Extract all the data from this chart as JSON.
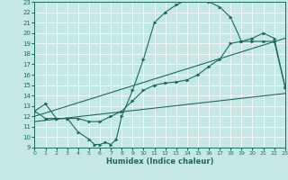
{
  "xlabel": "Humidex (Indice chaleur)",
  "xlim": [
    0,
    23
  ],
  "ylim": [
    9,
    23
  ],
  "xticks": [
    0,
    1,
    2,
    3,
    4,
    5,
    6,
    7,
    8,
    9,
    10,
    11,
    12,
    13,
    14,
    15,
    16,
    17,
    18,
    19,
    20,
    21,
    22,
    23
  ],
  "yticks": [
    9,
    10,
    11,
    12,
    13,
    14,
    15,
    16,
    17,
    18,
    19,
    20,
    21,
    22,
    23
  ],
  "bg_color": "#c5e8e5",
  "line_color": "#1a6b5a",
  "grid_color": "#b0d8d4",
  "line1_x": [
    0,
    1,
    2,
    3,
    4,
    5,
    5.5,
    6,
    6.5,
    7,
    7.5,
    8,
    9,
    10,
    11,
    12,
    13,
    14,
    15,
    16,
    17,
    18,
    19,
    20,
    21,
    22,
    23
  ],
  "line1_y": [
    12.5,
    13.2,
    11.8,
    11.8,
    10.5,
    9.8,
    9.3,
    9.3,
    9.5,
    9.3,
    9.8,
    12.0,
    14.5,
    17.5,
    21.0,
    22.0,
    22.7,
    23.2,
    23.2,
    23.0,
    22.5,
    21.5,
    19.2,
    19.5,
    20.0,
    19.5,
    14.8
  ],
  "line2_x": [
    0,
    1,
    2,
    3,
    4,
    5,
    6,
    7,
    8,
    9,
    10,
    11,
    12,
    13,
    14,
    15,
    16,
    17,
    18,
    19,
    20,
    21,
    22,
    23
  ],
  "line2_y": [
    12.5,
    11.8,
    11.8,
    11.8,
    11.8,
    11.5,
    11.5,
    12.0,
    12.5,
    13.5,
    14.5,
    15.0,
    15.2,
    15.3,
    15.5,
    16.0,
    16.8,
    17.5,
    19.0,
    19.2,
    19.2,
    19.2,
    19.2,
    14.8
  ],
  "line3_x": [
    0,
    23
  ],
  "line3_y": [
    12.0,
    19.5
  ],
  "line4_x": [
    0,
    23
  ],
  "line4_y": [
    11.5,
    14.2
  ],
  "marker": ">"
}
